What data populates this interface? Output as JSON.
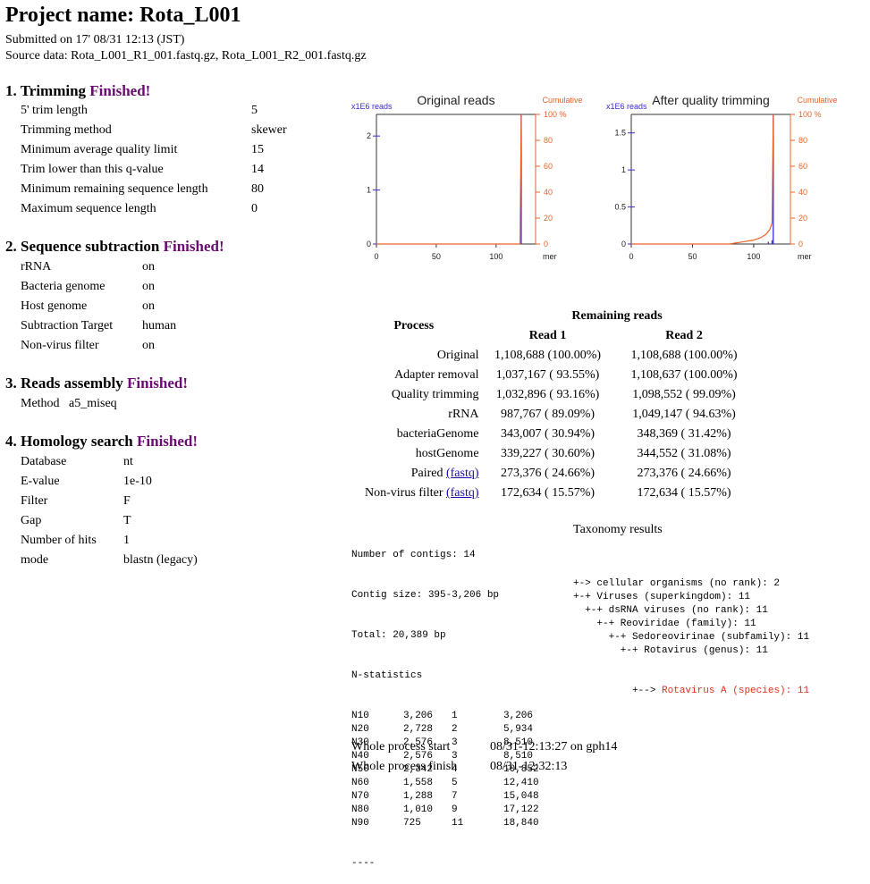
{
  "header": {
    "title": "Project name: Rota_L001",
    "submitted": "Submitted on 17' 08/31 12:13 (JST)",
    "source": "Source data: Rota_L001_R1_001.fastq.gz, Rota_L001_R2_001.fastq.gz"
  },
  "status_word": "Finished!",
  "trimming": {
    "heading": "1. Trimming",
    "rows": [
      {
        "k": "5' trim length",
        "v": "5"
      },
      {
        "k": "Trimming method",
        "v": "skewer"
      },
      {
        "k": "Minimum average quality limit",
        "v": "15"
      },
      {
        "k": "Trim lower than this q-value",
        "v": "14"
      },
      {
        "k": "Minimum remaining sequence length",
        "v": "80"
      },
      {
        "k": "Maximum sequence length",
        "v": "0"
      }
    ]
  },
  "subtraction": {
    "heading": "2. Sequence subtraction",
    "rows": [
      {
        "k": "rRNA",
        "v": "on"
      },
      {
        "k": "Bacteria genome",
        "v": "on"
      },
      {
        "k": "Host genome",
        "v": "on"
      },
      {
        "k": "Subtraction Target",
        "v": "human"
      },
      {
        "k": "Non-virus filter",
        "v": "on"
      }
    ]
  },
  "assembly": {
    "heading": "3. Reads assembly",
    "rows": [
      {
        "k": "Method",
        "v": "a5_miseq"
      }
    ]
  },
  "homology": {
    "heading": "4. Homology search",
    "rows": [
      {
        "k": "Database",
        "v": "nt"
      },
      {
        "k": "E-value",
        "v": "1e-10"
      },
      {
        "k": "Filter",
        "v": "F"
      },
      {
        "k": "Gap",
        "v": "T"
      },
      {
        "k": "Number of hits",
        "v": "1"
      },
      {
        "k": "mode",
        "v": "blastn (legacy)"
      }
    ]
  },
  "chart_data": [
    {
      "type": "bar",
      "title": "Original reads",
      "ylabel": "x1E6 reads",
      "y2label": "Cumulative",
      "xlabel": "mer",
      "x_ticks": [
        "0",
        "50",
        "100"
      ],
      "y_ticks": [
        "0",
        "1",
        "2"
      ],
      "y2_ticks": [
        "0",
        "20",
        "40",
        "60",
        "80",
        "100 %"
      ],
      "xlim": [
        0,
        133
      ],
      "ylim": [
        0,
        2.4
      ],
      "bars": [
        {
          "x": 121,
          "y": 2.4
        }
      ],
      "cumulative": [
        {
          "x": 0,
          "y": 0
        },
        {
          "x": 120,
          "y": 0
        },
        {
          "x": 121,
          "y": 100
        }
      ]
    },
    {
      "type": "bar",
      "title": "After quality trimming",
      "ylabel": "x1E6 reads",
      "y2label": "Cumulative",
      "xlabel": "mer",
      "x_ticks": [
        "0",
        "50",
        "100"
      ],
      "y_ticks": [
        "0",
        "0.5",
        "1",
        "1.5"
      ],
      "y2_ticks": [
        "0",
        "20",
        "40",
        "60",
        "80",
        "100 %"
      ],
      "xlim": [
        0,
        130
      ],
      "ylim": [
        0,
        1.75
      ],
      "bars": [
        {
          "x": 112,
          "y": 0.03
        },
        {
          "x": 115,
          "y": 0.05
        },
        {
          "x": 116,
          "y": 1.75
        }
      ],
      "cumulative": [
        {
          "x": 0,
          "y": 0
        },
        {
          "x": 80,
          "y": 0
        },
        {
          "x": 90,
          "y": 1.5
        },
        {
          "x": 100,
          "y": 3
        },
        {
          "x": 106,
          "y": 5
        },
        {
          "x": 110,
          "y": 7.5
        },
        {
          "x": 113,
          "y": 11
        },
        {
          "x": 115,
          "y": 16
        },
        {
          "x": 116,
          "y": 100
        }
      ]
    }
  ],
  "reads_table": {
    "col_process": "Process",
    "col_remaining": "Remaining reads",
    "col_read1": "Read 1",
    "col_read2": "Read 2",
    "rows": [
      {
        "name": "Original",
        "link": "",
        "r1": "1,108,688 (100.00%)",
        "r2": "1,108,688 (100.00%)"
      },
      {
        "name": "Adapter removal",
        "link": "",
        "r1": "1,037,167 ( 93.55%)",
        "r2": "1,108,637 (100.00%)"
      },
      {
        "name": "Quality trimming",
        "link": "",
        "r1": "1,032,896 ( 93.16%)",
        "r2": "1,098,552 ( 99.09%)"
      },
      {
        "name": "rRNA",
        "link": "",
        "r1": "987,767 ( 89.09%)",
        "r2": "1,049,147 ( 94.63%)"
      },
      {
        "name": "bacteriaGenome",
        "link": "",
        "r1": "343,007 ( 30.94%)",
        "r2": "348,369 ( 31.42%)"
      },
      {
        "name": "hostGenome",
        "link": "",
        "r1": "339,227 ( 30.60%)",
        "r2": "344,552 ( 31.08%)"
      },
      {
        "name": "Paired",
        "link": "(fastq)",
        "r1": "273,376 ( 24.66%)",
        "r2": "273,376 ( 24.66%)"
      },
      {
        "name": "Non-virus filter",
        "link": "(fastq)",
        "r1": "172,634 ( 15.57%)",
        "r2": "172,634 ( 15.57%)"
      }
    ]
  },
  "contigs": {
    "line1": "Number of contigs: 14",
    "line2": "Contig size: 395-3,206 bp",
    "line3": "Total: 20,389 bp",
    "line4": "N-statistics",
    "rows": [
      [
        "N10",
        "3,206",
        "1",
        "3,206"
      ],
      [
        "N20",
        "2,728",
        "2",
        "5,934"
      ],
      [
        "N30",
        "2,576",
        "3",
        "8,510"
      ],
      [
        "N40",
        "2,576",
        "3",
        "8,510"
      ],
      [
        "N50",
        "2,342",
        "4",
        "10,852"
      ],
      [
        "N60",
        "1,558",
        "5",
        "12,410"
      ],
      [
        "N70",
        "1,288",
        "7",
        "15,048"
      ],
      [
        "N80",
        "1,010",
        "9",
        "17,122"
      ],
      [
        "N90",
        "725",
        "11",
        "18,840"
      ]
    ],
    "end": "----"
  },
  "taxonomy": {
    "title": "Taxonomy results",
    "lines": [
      "+-> cellular organisms (no rank): 2",
      "+-+ Viruses (superkingdom): 11",
      "  +-+ dsRNA viruses (no rank): 11",
      "    +-+ Reoviridae (family): 11",
      "      +-+ Sedoreovirinae (subfamily): 11",
      "        +-+ Rotavirus (genus): 11"
    ],
    "last_prefix": "          +--> ",
    "last_text": "Rotavirus A (species): 11",
    "highlight_color": "#e0301e"
  },
  "timing": {
    "start_label": "Whole process start",
    "start_value": "08/31-12:13:27 on gph14",
    "finish_label": "Whole process finish",
    "finish_value": "08/31-12:32:13"
  },
  "colors": {
    "finished": "#6b0a73",
    "bar": "#3b2bd6",
    "cumulative": "#e8642a",
    "link": "#1a0dab"
  }
}
